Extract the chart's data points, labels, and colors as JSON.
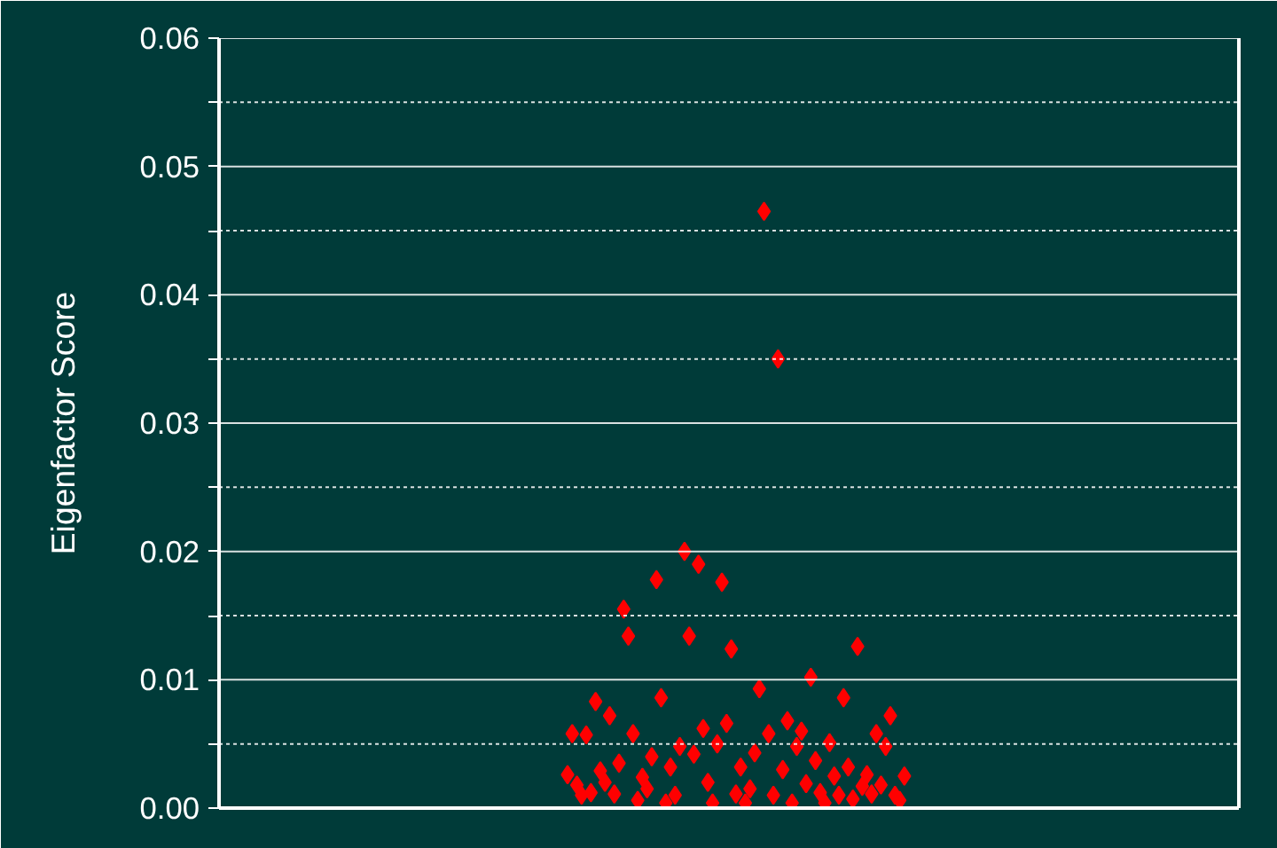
{
  "chart_data": {
    "type": "scatter",
    "ylabel": "Eigenfactor Score",
    "marker": "diamond",
    "grid": "y",
    "tick_labels": "y",
    "categories": [
      null,
      null,
      null,
      null,
      null,
      null,
      null,
      null,
      null,
      null,
      null,
      null,
      null,
      null,
      null,
      null,
      null,
      null,
      null,
      null,
      null,
      null,
      null,
      null,
      null,
      null,
      null,
      null,
      null,
      null,
      null,
      null,
      null,
      null,
      null,
      null,
      null,
      null,
      null,
      null,
      null,
      null,
      null,
      null,
      null,
      null,
      null,
      null,
      null,
      null,
      null,
      null,
      null,
      null,
      null,
      null,
      null,
      null,
      null,
      null,
      null,
      null,
      null,
      null,
      null,
      null,
      null,
      null,
      null,
      null,
      null,
      null,
      null,
      null,
      null,
      null,
      null,
      null,
      null,
      null,
      null,
      null,
      null,
      null,
      null,
      null,
      null,
      null,
      null,
      null,
      null,
      null,
      null,
      null,
      null,
      null,
      null,
      null,
      null,
      null,
      null,
      null,
      null,
      null,
      null,
      null,
      null,
      null,
      null,
      null,
      null,
      null,
      null,
      null,
      null,
      null,
      null,
      null,
      null,
      null,
      null,
      null,
      null,
      null,
      null,
      null,
      null,
      null,
      null,
      null,
      null,
      null,
      null,
      null,
      null,
      null,
      null,
      null,
      null,
      null,
      null,
      null,
      null,
      null,
      null,
      null,
      null,
      null,
      null,
      null,
      null,
      null,
      null,
      null,
      null,
      null,
      null,
      null,
      null,
      null,
      null,
      null,
      null,
      null,
      null,
      null,
      null,
      null,
      null,
      null,
      null,
      null,
      null,
      null,
      null,
      null,
      null,
      null,
      null,
      null,
      null,
      null,
      null,
      null,
      null,
      null,
      null,
      null,
      null,
      null,
      null,
      null,
      null,
      null,
      null,
      null,
      null,
      null,
      null,
      null,
      null,
      null,
      null,
      null,
      null,
      null,
      null,
      null,
      null,
      null,
      null,
      null,
      null,
      null,
      null,
      null,
      null,
      null
    ],
    "ylim": [
      0,
      0.06
    ],
    "yticks": [
      {
        "value": 0,
        "label": "0.00"
      },
      {
        "value": 0.005,
        "label": null
      },
      {
        "value": 0.01,
        "label": "0.01"
      },
      {
        "value": 0.015,
        "label": null
      },
      {
        "value": 0.02,
        "label": "0.02"
      },
      {
        "value": 0.025,
        "label": null
      },
      {
        "value": 0.03,
        "label": "0.03"
      },
      {
        "value": 0.035,
        "label": null
      },
      {
        "value": 0.04,
        "label": "0.04"
      },
      {
        "value": 0.045,
        "label": null
      },
      {
        "value": 0.05,
        "label": "0.05"
      },
      {
        "value": 0.055,
        "label": null
      },
      {
        "value": 0.06,
        "label": "0.06"
      }
    ],
    "series": [
      {
        "color": "#ff0000",
        "values": [
          null,
          null,
          null,
          null,
          null,
          null,
          null,
          null,
          null,
          null,
          null,
          null,
          null,
          null,
          null,
          null,
          null,
          null,
          null,
          null,
          null,
          null,
          null,
          null,
          null,
          null,
          null,
          null,
          null,
          null,
          null,
          null,
          null,
          null,
          null,
          null,
          null,
          null,
          null,
          null,
          null,
          null,
          null,
          null,
          null,
          null,
          null,
          null,
          null,
          null,
          null,
          null,
          null,
          null,
          null,
          null,
          null,
          null,
          null,
          null,
          null,
          null,
          null,
          null,
          null,
          null,
          null,
          null,
          null,
          null,
          null,
          null,
          null,
          null,
          0.0026,
          0.0058,
          0.0018,
          0.001,
          0.0057,
          0.0012,
          0.0083,
          0.0029,
          0.002,
          0.0072,
          0.0011,
          0.0035,
          0.0155,
          0.0134,
          0.0058,
          0.0006,
          0.0024,
          0.0015,
          0.004,
          0.0178,
          0.0086,
          0.0004,
          0.0032,
          0.001,
          0.0048,
          0.02,
          0.0134,
          0.0042,
          0.019,
          0.0062,
          0.002,
          0.0004,
          0.005,
          0.0176,
          0.0066,
          0.0124,
          0.0011,
          0.0032,
          0.0004,
          0.0015,
          0.0043,
          0.0093,
          0.0465,
          0.0058,
          0.001,
          0.035,
          0.003,
          0.0068,
          0.0004,
          0.0048,
          0.006,
          0.0019,
          0.0102,
          0.0037,
          0.0012,
          0.0004,
          0.0051,
          0.0025,
          0.001,
          0.0086,
          0.0032,
          0.0007,
          0.0126,
          0.0017,
          0.0026,
          0.0011,
          0.0058,
          0.0018,
          0.0048,
          0.0072,
          0.001,
          0.0006,
          0.0025,
          null,
          null,
          null,
          null,
          null,
          null,
          null,
          null,
          null,
          null,
          null,
          null,
          null,
          null,
          null,
          null,
          null,
          null,
          null,
          null,
          null,
          null,
          null,
          null,
          null,
          null,
          null,
          null,
          null,
          null,
          null,
          null,
          null,
          null,
          null,
          null,
          null,
          null,
          null,
          null,
          null,
          null,
          null,
          null,
          null,
          null,
          null,
          null,
          null,
          null,
          null,
          null,
          null,
          null,
          null,
          null,
          null,
          null,
          null,
          null,
          null,
          null,
          null,
          null,
          null,
          null,
          null,
          null,
          null,
          null,
          null
        ]
      }
    ]
  }
}
